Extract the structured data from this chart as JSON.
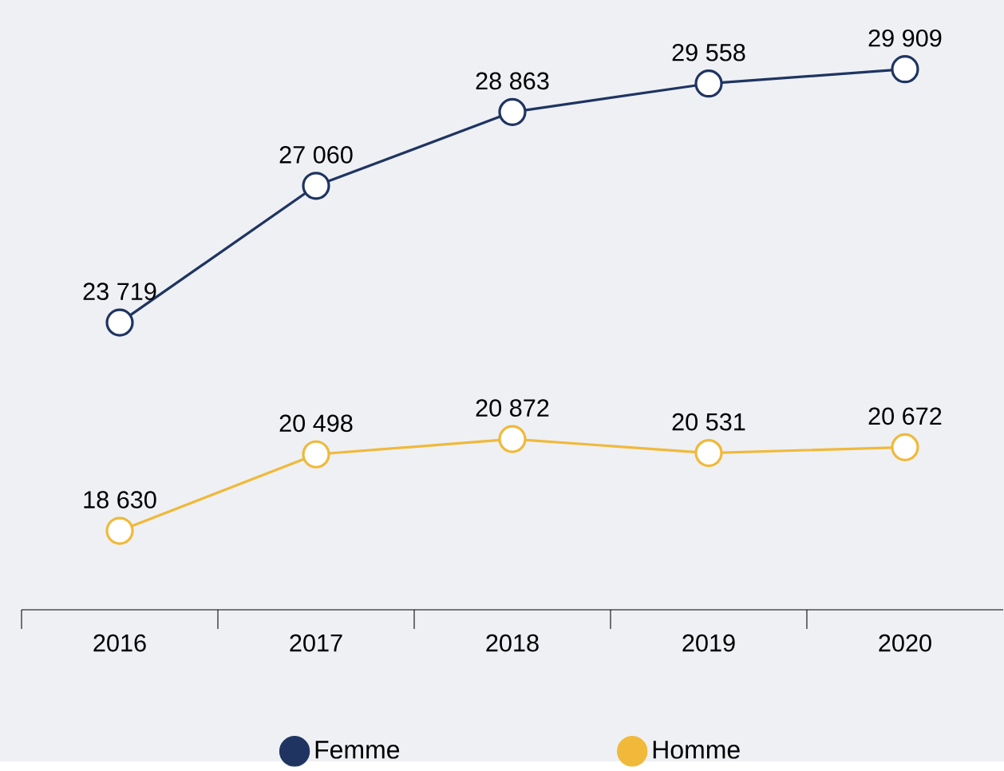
{
  "chart_data": {
    "type": "line",
    "categories": [
      "2016",
      "2017",
      "2018",
      "2019",
      "2020"
    ],
    "series": [
      {
        "name": "Femme",
        "color": "#1f3461",
        "values": [
          23719,
          27060,
          28863,
          29558,
          29909
        ],
        "value_labels": [
          "23 719",
          "27 060",
          "28 863",
          "29 558",
          "29 909"
        ]
      },
      {
        "name": "Homme",
        "color": "#f0b93a",
        "values": [
          18630,
          20498,
          20872,
          20531,
          20672
        ],
        "value_labels": [
          "18 630",
          "20 498",
          "20 872",
          "20 531",
          "20 672"
        ]
      }
    ],
    "ylim": [
      16700,
      31600
    ],
    "legend": "bottom",
    "marker": "circle",
    "line_style": "solid",
    "tick_labels": "x"
  }
}
